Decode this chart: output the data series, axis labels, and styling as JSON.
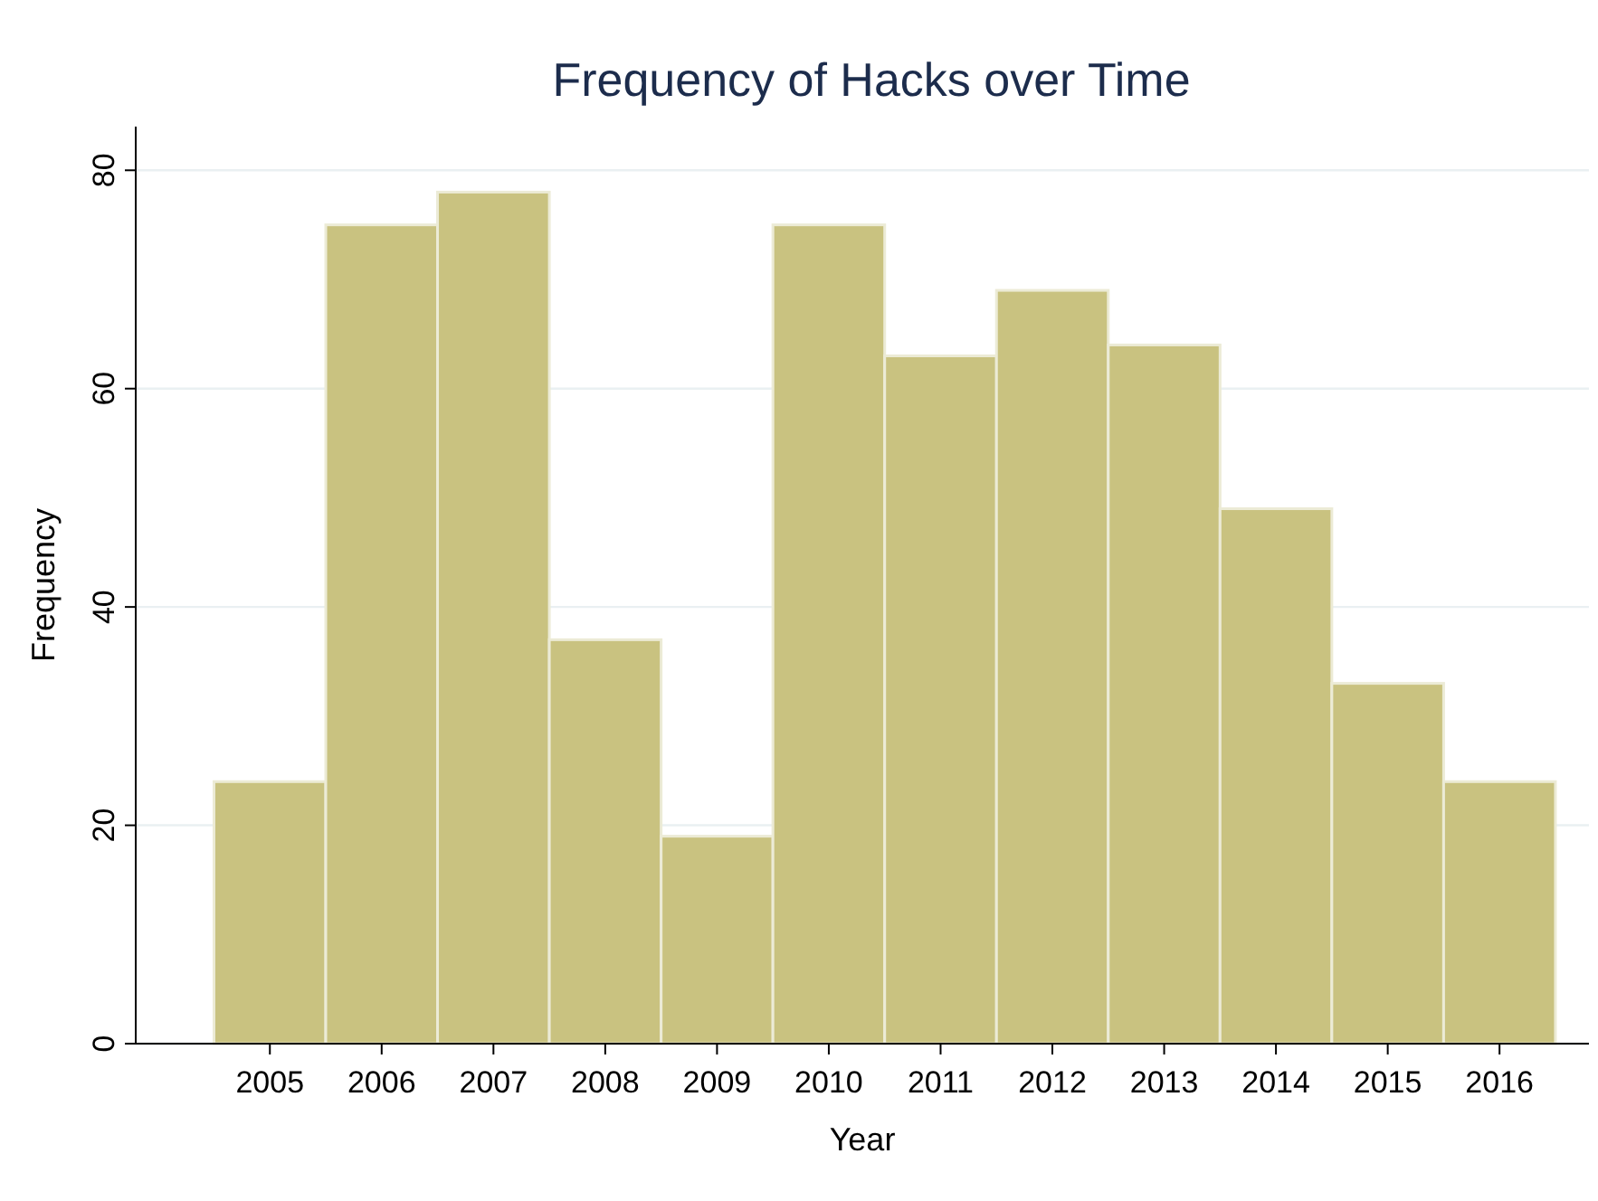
{
  "chart_data": {
    "type": "histogram",
    "title": "Frequency of Hacks over Time",
    "xlabel": "Year",
    "ylabel": "Frequency",
    "bins": [
      2004.5,
      2005.5,
      2006.5,
      2007.5,
      2008.5,
      2009.5,
      2010.5,
      2011.5,
      2012.5,
      2013.5,
      2014.5,
      2015.5,
      2016.5
    ],
    "values": [
      24,
      75,
      78,
      37,
      19,
      75,
      63,
      69,
      64,
      49,
      33,
      24
    ],
    "color": "#c9c280",
    "xlim": [
      2003.8,
      2016.8
    ],
    "xticks": [
      2005,
      2006,
      2007,
      2008,
      2009,
      2010,
      2011,
      2012,
      2013,
      2014,
      2015,
      2016
    ],
    "ylim": [
      0,
      84
    ],
    "yticks": [
      0,
      20,
      40,
      60,
      80
    ],
    "grid": "y"
  }
}
